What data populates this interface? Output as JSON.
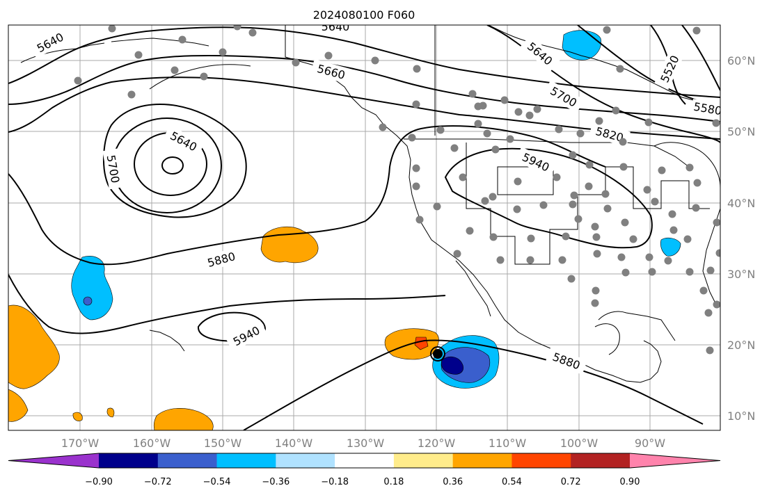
{
  "title": "2024080100 F060",
  "lon_labels": [
    "170°W",
    "160°W",
    "150°W",
    "140°W",
    "130°W",
    "120°W",
    "110°W",
    "100°W",
    "90°W"
  ],
  "lat_labels": [
    "60°N",
    "50°N",
    "40°N",
    "30°N",
    "20°N",
    "10°N"
  ],
  "contour_labels": [
    "5640",
    "5640",
    "5640",
    "5700",
    "5880",
    "5940",
    "5660",
    "5640",
    "5700",
    "5820",
    "5520",
    "5580",
    "5940",
    "5880"
  ],
  "colorbar": {
    "tick_labels": [
      "−0.90",
      "−0.72",
      "−0.54",
      "−0.36",
      "−0.18",
      "0.18",
      "0.36",
      "0.54",
      "0.72",
      "0.90"
    ],
    "colors": [
      "#9a32cd",
      "#00008b",
      "#3a5fcd",
      "#00bfff",
      "#b0e2ff",
      "#ffffff",
      "#ffec8b",
      "#ffa500",
      "#ff4500",
      "#b22222",
      "#ff83ac"
    ]
  },
  "colors": {
    "orange": "#ffa500",
    "deep_sky_blue": "#00bfff",
    "royal_blue": "#3a5fcd",
    "navy": "#00008b",
    "red_orange": "#ff4500",
    "station": "#808080",
    "grid": "#a9a9a9"
  }
}
